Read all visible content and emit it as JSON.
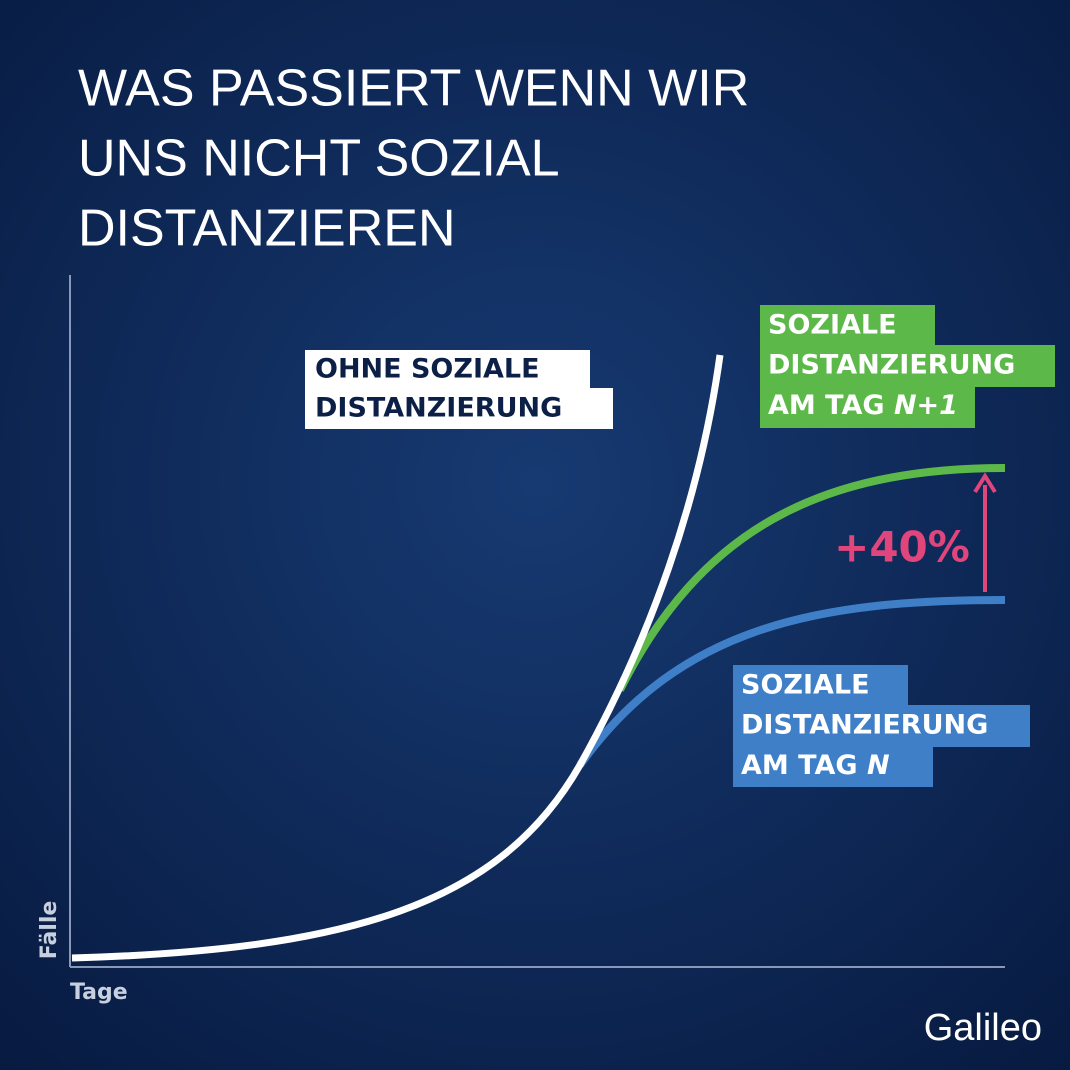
{
  "title": [
    "WAS PASSIERT WENN WIR",
    "UNS NICHT SOZIAL",
    "DISTANZIEREN"
  ],
  "axes": {
    "y": "Fälle",
    "x": "Tage"
  },
  "labels": {
    "without": [
      "OHNE SOZIALE",
      "DISTANZIERUNG"
    ],
    "day_n1": {
      "lines": [
        "SOZIALE",
        "DISTANZIERUNG",
        "AM TAG"
      ],
      "day": "N+1"
    },
    "day_n": {
      "lines": [
        "SOZIALE",
        "DISTANZIERUNG",
        "AM TAG"
      ],
      "day": "N"
    }
  },
  "difference": "+40%",
  "logo": "Galileo"
}
